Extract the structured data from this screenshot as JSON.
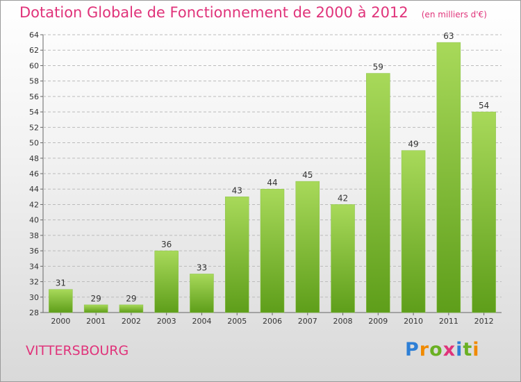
{
  "title": "Dotation Globale de Fonctionnement de 2000 à 2012",
  "unit_note": "(en milliers d'€)",
  "town": "VITTERSBOURG",
  "logo": {
    "text": "Proxiti",
    "letters": [
      "P",
      "r",
      "o",
      "x",
      "i",
      "t",
      "i"
    ],
    "colors": [
      "#2e7fd6",
      "#f08a00",
      "#6ab023",
      "#e0337a",
      "#2e7fd6",
      "#6ab023",
      "#f08a00"
    ]
  },
  "colors": {
    "title": "#e0337a",
    "bar_top": "#a8d95a",
    "bar_bottom": "#5e9e1a",
    "grid": "#bbbbbb"
  },
  "chart_data": {
    "type": "bar",
    "title": "Dotation Globale de Fonctionnement de 2000 à 2012",
    "subtitle": "(en milliers d'€)",
    "xlabel": "",
    "ylabel": "",
    "categories": [
      "2000",
      "2001",
      "2002",
      "2003",
      "2004",
      "2005",
      "2006",
      "2007",
      "2008",
      "2009",
      "2010",
      "2011",
      "2012"
    ],
    "values": [
      31,
      29,
      29,
      36,
      33,
      43,
      44,
      45,
      42,
      59,
      49,
      63,
      54
    ],
    "ylim": [
      28,
      64
    ],
    "yticks": [
      28,
      30,
      32,
      34,
      36,
      38,
      40,
      42,
      44,
      46,
      48,
      50,
      52,
      54,
      56,
      58,
      60,
      62,
      64
    ],
    "grid": true,
    "data_labels": true
  }
}
